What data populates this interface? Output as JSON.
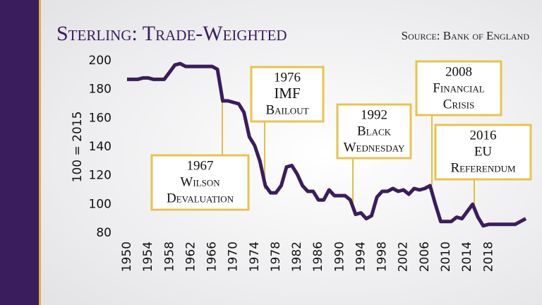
{
  "chart_data": {
    "type": "line",
    "title": "Sterling: Trade-Weighted",
    "source": "Source: Bank of England",
    "y_label": "100 = 2015",
    "color": "#3a1d5c",
    "x": [
      1950,
      1951,
      1952,
      1953,
      1954,
      1955,
      1956,
      1957,
      1958,
      1959,
      1960,
      1961,
      1962,
      1963,
      1964,
      1965,
      1966,
      1967,
      1968,
      1969,
      1970,
      1971,
      1972,
      1973,
      1974,
      1975,
      1976,
      1977,
      1978,
      1979,
      1980,
      1981,
      1982,
      1983,
      1984,
      1985,
      1986,
      1987,
      1988,
      1989,
      1990,
      1991,
      1992,
      1993,
      1994,
      1995,
      1996,
      1997,
      1998,
      1999,
      2000,
      2001,
      2002,
      2003,
      2004,
      2005,
      2006,
      2007,
      2008,
      2009,
      2010,
      2011,
      2012,
      2013,
      2014,
      2015,
      2016,
      2017,
      2018,
      2019,
      2020,
      2021,
      2022,
      2023,
      2024,
      2025
    ],
    "values": [
      187,
      187,
      187,
      188,
      188,
      187,
      187,
      187,
      192,
      197,
      198,
      196,
      196,
      196,
      196,
      196,
      196,
      194,
      172,
      172,
      171,
      170,
      164,
      147,
      141,
      130,
      113,
      108,
      108,
      113,
      126,
      127,
      121,
      113,
      109,
      109,
      103,
      103,
      110,
      106,
      106,
      106,
      103,
      93,
      94,
      90,
      92,
      105,
      109,
      109,
      111,
      109,
      110,
      107,
      111,
      110,
      111,
      113,
      100,
      88,
      88,
      88,
      91,
      90,
      95,
      100,
      91,
      85,
      86,
      86,
      86,
      86,
      86,
      86,
      88,
      90
    ],
    "xlim": [
      1950,
      2025
    ],
    "ylim": [
      80,
      200
    ],
    "xticks": [
      1950,
      1954,
      1958,
      1962,
      1966,
      1970,
      1974,
      1978,
      1982,
      1986,
      1990,
      1994,
      1998,
      2002,
      2006,
      2010,
      2014,
      2018
    ],
    "yticks": [
      80,
      100,
      120,
      140,
      160,
      180,
      200
    ],
    "annotations": [
      {
        "lines": [
          "1967",
          "Wilson",
          "Devaluation"
        ]
      },
      {
        "lines": [
          "1976",
          "IMF",
          "Bailout"
        ]
      },
      {
        "lines": [
          "1992",
          "Black",
          "Wednesday"
        ]
      },
      {
        "lines": [
          "2008",
          "Financial",
          "Crisis"
        ]
      },
      {
        "lines": [
          "2016",
          "EU",
          "Referendum"
        ]
      }
    ]
  }
}
